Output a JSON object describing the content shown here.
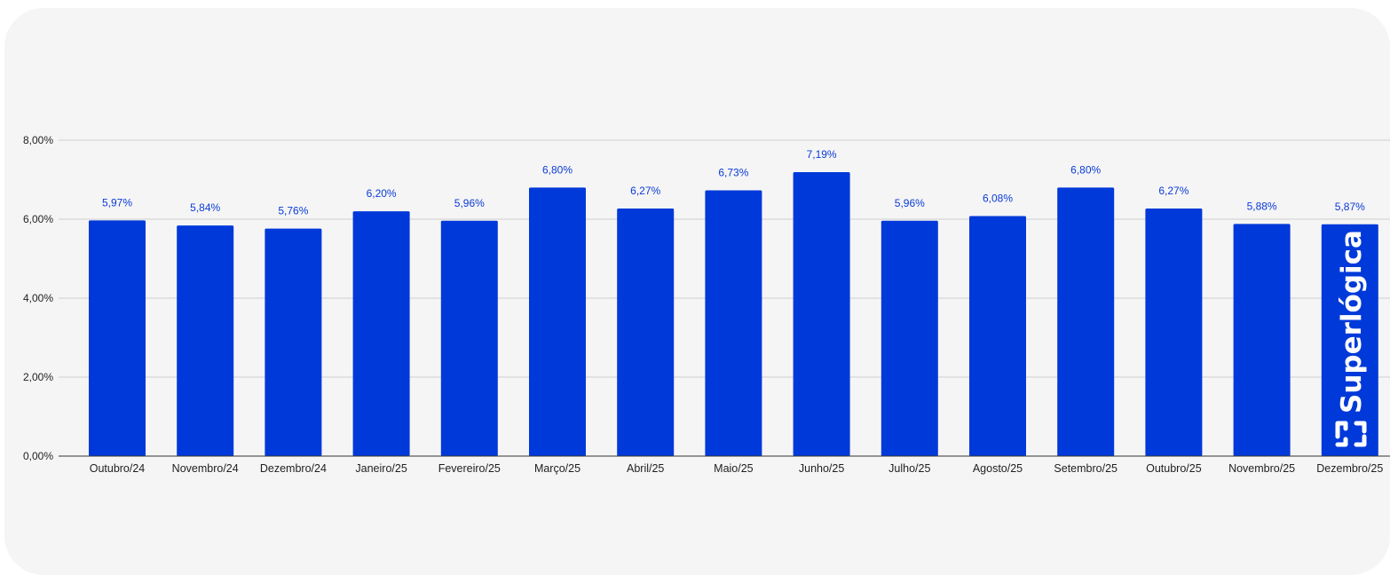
{
  "chart_data": {
    "type": "bar",
    "title": "",
    "xlabel": "",
    "ylabel": "",
    "categories": [
      "Outubro/24",
      "Novembro/24",
      "Dezembro/24",
      "Janeiro/25",
      "Fevereiro/25",
      "Março/25",
      "Abril/25",
      "Maio/25",
      "Junho/25",
      "Julho/25",
      "Agosto/25",
      "Setembro/25",
      "Outubro/25",
      "Novembro/25",
      "Dezembro/25"
    ],
    "values": [
      5.97,
      5.84,
      5.76,
      6.2,
      5.96,
      6.8,
      6.27,
      6.73,
      7.19,
      5.96,
      6.08,
      6.8,
      6.27,
      5.88,
      5.87
    ],
    "value_labels": [
      "5,97%",
      "5,84%",
      "5,76%",
      "6,20%",
      "5,96%",
      "6,80%",
      "6,27%",
      "6,73%",
      "7,19%",
      "5,96%",
      "6,08%",
      "6,80%",
      "6,27%",
      "5,88%",
      "5,87%"
    ],
    "ylim": [
      0,
      8
    ],
    "yticks": [
      0,
      2,
      4,
      6,
      8
    ],
    "ytick_labels": [
      "0,00%",
      "2,00%",
      "4,00%",
      "6,00%",
      "8,00%"
    ],
    "grid": true,
    "legend": "none",
    "bar_color": "#0039d9",
    "label_color": "#0b3bd6"
  },
  "watermark": {
    "brand_text": "Superlógica",
    "color": "#ffffff"
  }
}
